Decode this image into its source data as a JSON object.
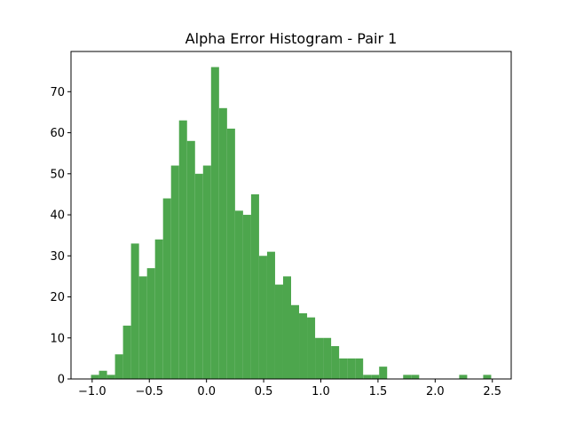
{
  "chart_data": {
    "type": "histogram",
    "title": "Alpha Error Histogram - Pair 1",
    "bins": [
      -1.01,
      -0.94,
      -0.87,
      -0.8,
      -0.73,
      -0.66,
      -0.59,
      -0.52,
      -0.45,
      -0.38,
      -0.31,
      -0.24,
      -0.17,
      -0.1,
      -0.03,
      0.04,
      0.11,
      0.18,
      0.25,
      0.32,
      0.39,
      0.46,
      0.53,
      0.6,
      0.67,
      0.74,
      0.81,
      0.88,
      0.95,
      1.02,
      1.09,
      1.16,
      1.23,
      1.3,
      1.37,
      1.44,
      1.51,
      1.58,
      1.65,
      1.72,
      1.79,
      1.86,
      1.93,
      2.0,
      2.07,
      2.14,
      2.21,
      2.28,
      2.35,
      2.42,
      2.49
    ],
    "values": [
      1,
      2,
      1,
      6,
      13,
      33,
      25,
      27,
      34,
      44,
      52,
      63,
      58,
      50,
      52,
      76,
      66,
      61,
      41,
      40,
      45,
      30,
      31,
      23,
      25,
      18,
      16,
      15,
      10,
      10,
      8,
      5,
      5,
      5,
      1,
      1,
      3,
      0,
      0,
      1,
      1,
      0,
      0,
      0,
      0,
      0,
      1,
      0,
      0,
      1
    ],
    "color": "#4da64d",
    "xlim": [
      -1.185,
      2.665
    ],
    "xticks": [
      {
        "value": -1.0,
        "label": "−1.0"
      },
      {
        "value": -0.5,
        "label": "−0.5"
      },
      {
        "value": 0,
        "label": "0.0"
      },
      0.5,
      {
        "value": 1,
        "label": "1.0"
      },
      1.5,
      {
        "value": 2,
        "label": "2.0"
      },
      2.5
    ],
    "ylim": [
      0,
      79.8
    ],
    "yticks": [
      0,
      10,
      20,
      30,
      40,
      50,
      60,
      70
    ]
  }
}
